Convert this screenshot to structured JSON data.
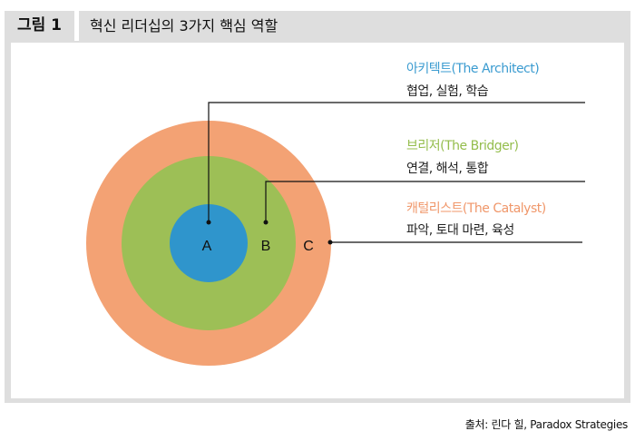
{
  "figure": {
    "label": "그림 1",
    "title": "혁신 리더십의 3가지 핵심 역할"
  },
  "circles": [
    {
      "letter": "A",
      "color": "#2f95cc"
    },
    {
      "letter": "B",
      "color": "#9dbf56"
    },
    {
      "letter": "C",
      "color": "#f3a274"
    }
  ],
  "roles": [
    {
      "title": "아키텍트(The Architect)",
      "desc": "협업, 실험, 학습",
      "color": "#3a9bd0"
    },
    {
      "title": "브리저(The Bridger)",
      "desc": "연결, 해석, 통합",
      "color": "#94bd4c"
    },
    {
      "title": "캐털리스트(The Catalyst)",
      "desc": "파악, 토대 마련, 육성",
      "color": "#f0976a"
    }
  ],
  "source": "출처: 린다 힐, Paradox Strategies"
}
